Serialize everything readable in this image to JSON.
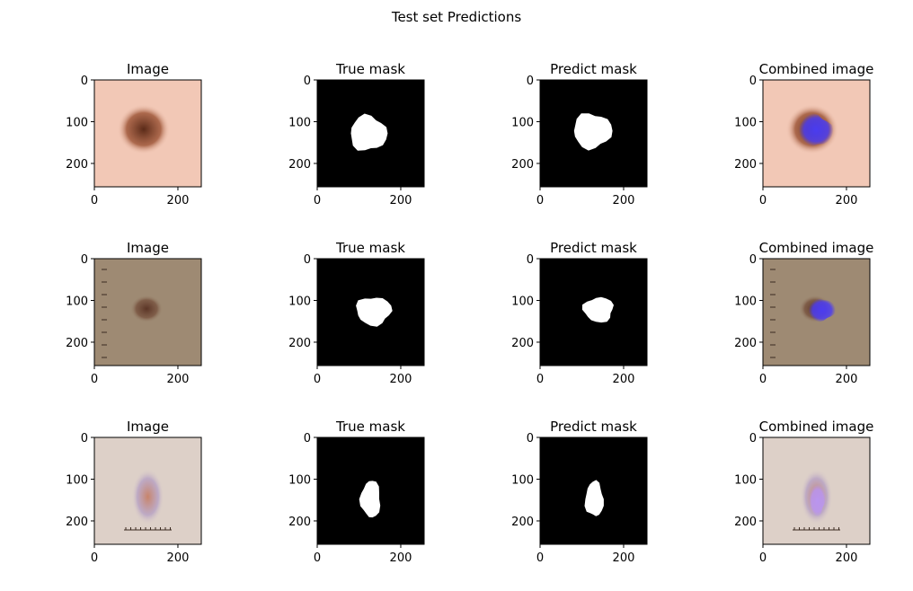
{
  "figure": {
    "suptitle": "Test set Predictions"
  },
  "chart_data": {
    "type": "image-grid",
    "title": "Test set Predictions",
    "rows": 3,
    "cols": 4,
    "axes": {
      "xlim": [
        0,
        256
      ],
      "ylim": [
        256,
        0
      ],
      "xticks": [
        0,
        200
      ],
      "yticks": [
        0,
        100,
        200
      ]
    },
    "columns": [
      "Image",
      "True mask",
      "Predict mask",
      "Combined image"
    ],
    "panels": [
      {
        "row": 0,
        "skin": {
          "bg": "#f2c8b6",
          "lesion": "#5a2a18",
          "halo": "#a0583a",
          "marks": false
        },
        "lesion_center": [
          118,
          118
        ],
        "lesion_radii": [
          42,
          40
        ],
        "true_mask_center": [
          122,
          128
        ],
        "true_mask_radii": [
          44,
          42
        ],
        "pred_mask_center": [
          125,
          122
        ],
        "pred_mask_radii": [
          46,
          42
        ],
        "overlay": "#4a3cf0"
      },
      {
        "row": 1,
        "skin": {
          "bg": "#9e8a73",
          "lesion": "#5b3526",
          "halo": "#7a5642",
          "marks": true
        },
        "lesion_center": [
          125,
          120
        ],
        "lesion_radii": [
          26,
          22
        ],
        "true_mask_center": [
          135,
          125
        ],
        "true_mask_radii": [
          42,
          34
        ],
        "pred_mask_center": [
          140,
          122
        ],
        "pred_mask_radii": [
          36,
          30
        ],
        "overlay": "#4c3cf0"
      },
      {
        "row": 2,
        "skin": {
          "bg": "#ddd0c8",
          "lesion": "#c8846a",
          "halo": "#b8a3c4",
          "marks": true
        },
        "lesion_center": [
          128,
          142
        ],
        "lesion_radii": [
          26,
          45
        ],
        "true_mask_center": [
          128,
          148
        ],
        "true_mask_radii": [
          24,
          44
        ],
        "pred_mask_center": [
          130,
          148
        ],
        "pred_mask_radii": [
          22,
          42
        ],
        "overlay": "#b995f0"
      }
    ]
  }
}
